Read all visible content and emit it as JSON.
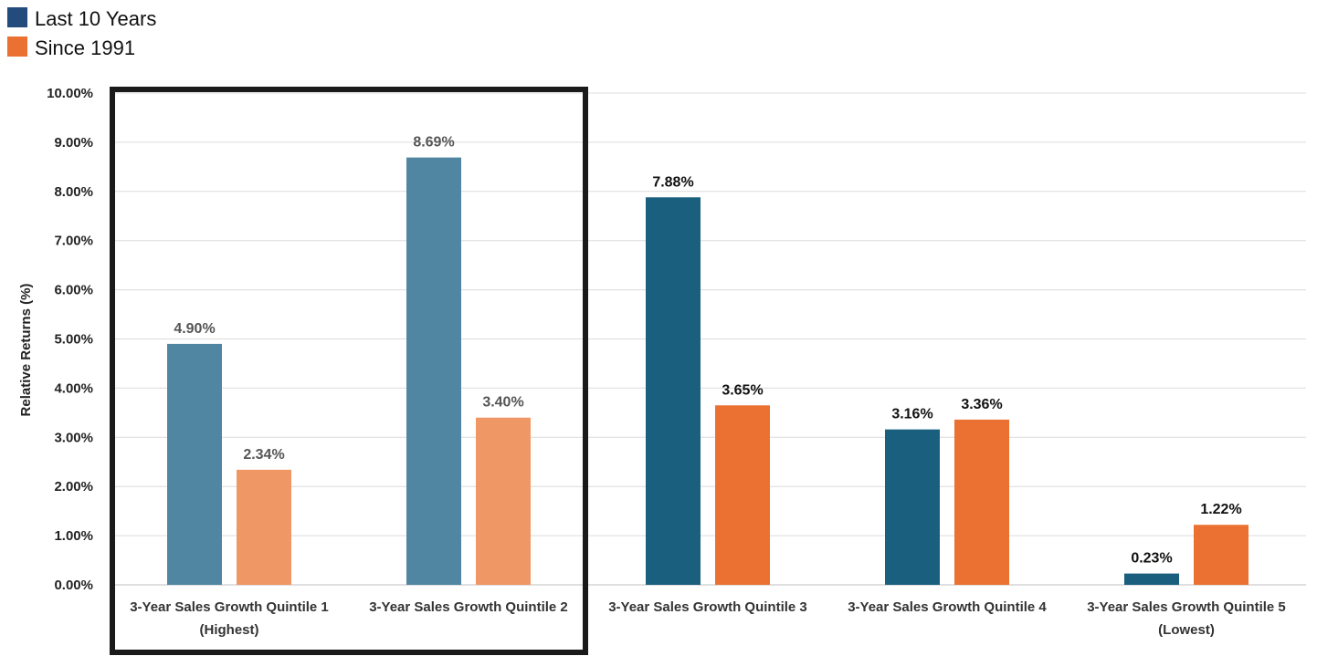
{
  "chart_data": {
    "type": "bar",
    "title": "",
    "xlabel": "",
    "ylabel": "Relative Returns (%)",
    "ylim": [
      0,
      10
    ],
    "y_ticks": [
      "0.00%",
      "1.00%",
      "2.00%",
      "3.00%",
      "4.00%",
      "5.00%",
      "6.00%",
      "7.00%",
      "8.00%",
      "9.00%",
      "10.00%"
    ],
    "grid": "horizontal",
    "legend_position": "top-left",
    "categories": [
      [
        "3-Year Sales Growth Quintile 1",
        "(Highest)"
      ],
      [
        "3-Year Sales Growth Quintile 2"
      ],
      [
        "3-Year Sales Growth Quintile 3"
      ],
      [
        "3-Year Sales Growth Quintile 4"
      ],
      [
        "3-Year Sales Growth Quintile 5",
        "(Lowest)"
      ]
    ],
    "series": [
      {
        "name": "Last 10 Years",
        "color": "#1b5f7f",
        "highlight_color": "#5186a3",
        "values": [
          4.9,
          8.69,
          7.88,
          3.16,
          0.23
        ],
        "labels": [
          "4.90%",
          "8.69%",
          "7.88%",
          "3.16%",
          "0.23%"
        ]
      },
      {
        "name": "Since 1991",
        "color": "#ea7131",
        "highlight_color": "#f09766",
        "values": [
          2.34,
          3.4,
          3.65,
          3.36,
          1.22
        ],
        "labels": [
          "2.34%",
          "3.40%",
          "3.65%",
          "3.36%",
          "1.22%"
        ]
      }
    ],
    "legend_colors": [
      "#234b7c",
      "#ea7131"
    ],
    "highlighted_categories": [
      0,
      1
    ],
    "highlight_box": true
  }
}
